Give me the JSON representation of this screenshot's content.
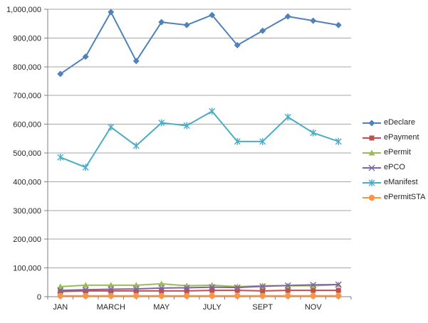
{
  "chart_data": {
    "type": "line",
    "title": "",
    "n_points": 12,
    "x_tick_labels": [
      "JAN",
      "MARCH",
      "MAY",
      "JULY",
      "SEPT",
      "NOV"
    ],
    "x_label_point_indices": [
      0,
      2,
      4,
      6,
      8,
      10
    ],
    "ylim": [
      0,
      1000000
    ],
    "y_tick_step": 100000,
    "y_tick_labels": [
      "0",
      "100,000",
      "200,000",
      "300,000",
      "400,000",
      "500,000",
      "600,000",
      "700,000",
      "800,000",
      "900,000",
      "1,000,000"
    ],
    "grid": true,
    "legend_position": "right",
    "series": [
      {
        "name": "eDeclare",
        "color": "#4F81BD",
        "marker": "diamond",
        "values": [
          775000,
          835000,
          990000,
          820000,
          955000,
          945000,
          980000,
          875000,
          925000,
          975000,
          960000,
          945000
        ]
      },
      {
        "name": "ePayment",
        "color": "#C0504D",
        "marker": "square",
        "values": [
          18000,
          20000,
          20000,
          20000,
          20000,
          20000,
          22000,
          22000,
          20000,
          22000,
          22000,
          22000
        ]
      },
      {
        "name": "ePermit",
        "color": "#9BBB59",
        "marker": "triangle",
        "values": [
          35000,
          40000,
          40000,
          40000,
          45000,
          38000,
          40000,
          35000,
          38000,
          38000,
          38000,
          42000
        ]
      },
      {
        "name": "ePCO",
        "color": "#8064A2",
        "marker": "x",
        "values": [
          22000,
          24000,
          26000,
          27000,
          30000,
          31000,
          33000,
          32000,
          36000,
          39000,
          41000,
          42000
        ]
      },
      {
        "name": "eManifest",
        "color": "#4BACC6",
        "marker": "asterisk",
        "values": [
          485000,
          450000,
          590000,
          525000,
          605000,
          595000,
          645000,
          540000,
          540000,
          625000,
          570000,
          540000
        ]
      },
      {
        "name": "ePermitSTA",
        "color": "#F79646",
        "marker": "circle",
        "values": [
          3000,
          3000,
          3000,
          3000,
          3000,
          3000,
          3000,
          3000,
          3000,
          3000,
          3000,
          3000
        ]
      }
    ],
    "colors": {
      "grid": "#A6A6A6",
      "axis": "#808080",
      "text": "#262626",
      "background": "#FFFFFF"
    }
  }
}
